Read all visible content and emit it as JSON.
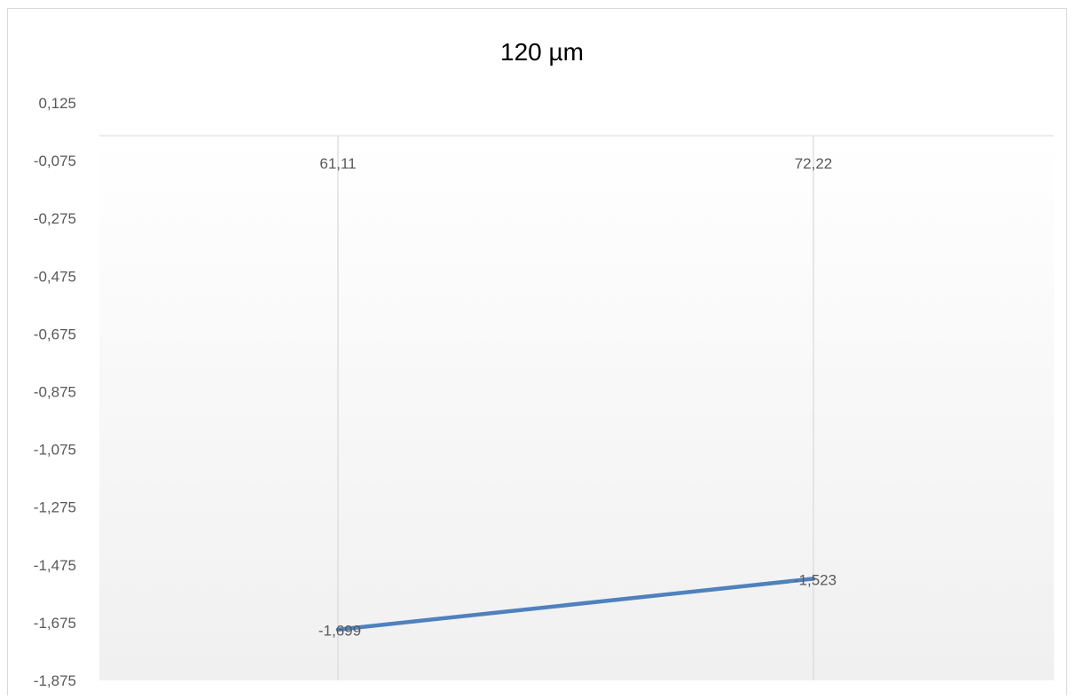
{
  "chart_data": {
    "type": "line",
    "title": "120 µm",
    "x": [
      "61,11",
      "72,22"
    ],
    "series": [
      {
        "values": [
          -1.699,
          -1.523
        ],
        "data_labels": [
          "-1,699",
          "-1,523"
        ],
        "color": "#4f81bd"
      }
    ],
    "ylim": [
      -1.875,
      0.125
    ],
    "y_ticks": [
      "0,125",
      "-0,075",
      "-0,275",
      "-0,475",
      "-0,675",
      "-0,875",
      "-1,075",
      "-1,275",
      "-1,475",
      "-1,675",
      "-1,875"
    ],
    "y_tick_values": [
      0.125,
      -0.075,
      -0.275,
      -0.475,
      -0.675,
      -0.875,
      -1.075,
      -1.275,
      -1.475,
      -1.675,
      -1.875
    ],
    "x_axis_position": "top",
    "grid": "vertical",
    "xlabel": "",
    "ylabel": ""
  }
}
